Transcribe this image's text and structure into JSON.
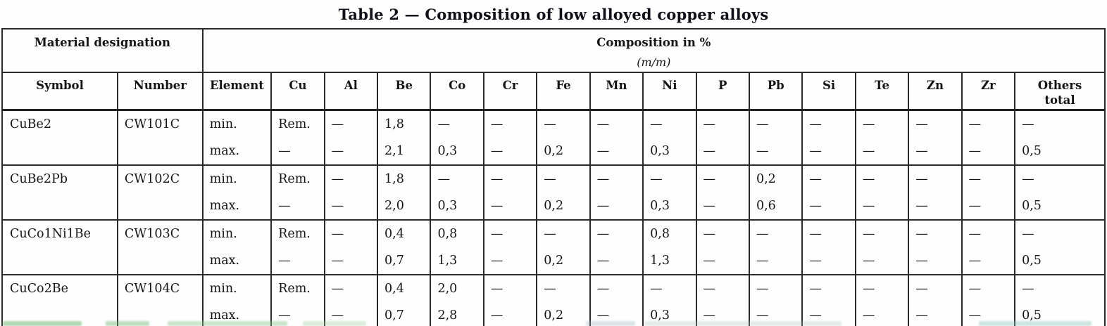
{
  "title": "Table 2 — Composition of low alloyed copper alloys",
  "table": {
    "group_headers": {
      "material_designation": "Material designation",
      "composition": "Composition in %",
      "composition_unit": "(m/m)"
    },
    "columns": [
      "Symbol",
      "Number",
      "Element",
      "Cu",
      "Al",
      "Be",
      "Co",
      "Cr",
      "Fe",
      "Mn",
      "Ni",
      "P",
      "Pb",
      "Si",
      "Te",
      "Zn",
      "Zr",
      "Others\ntotal"
    ],
    "row_labels": {
      "min": "min.",
      "max": "max."
    },
    "rows": [
      {
        "symbol": "CuBe2",
        "number": "CW101C",
        "min": [
          "Rem.",
          "—",
          "1,8",
          "—",
          "—",
          "—",
          "—",
          "—",
          "—",
          "—",
          "—",
          "—",
          "—",
          "—",
          "—"
        ],
        "max": [
          "—",
          "—",
          "2,1",
          "0,3",
          "—",
          "0,2",
          "—",
          "0,3",
          "—",
          "—",
          "—",
          "—",
          "—",
          "—",
          "0,5"
        ]
      },
      {
        "symbol": "CuBe2Pb",
        "number": "CW102C",
        "min": [
          "Rem.",
          "—",
          "1,8",
          "—",
          "—",
          "—",
          "—",
          "—",
          "—",
          "0,2",
          "—",
          "—",
          "—",
          "—",
          "—"
        ],
        "max": [
          "—",
          "—",
          "2,0",
          "0,3",
          "—",
          "0,2",
          "—",
          "0,3",
          "—",
          "0,6",
          "—",
          "—",
          "—",
          "—",
          "0,5"
        ]
      },
      {
        "symbol": "CuCo1Ni1Be",
        "number": "CW103C",
        "min": [
          "Rem.",
          "—",
          "0,4",
          "0,8",
          "—",
          "—",
          "—",
          "0,8",
          "—",
          "—",
          "—",
          "—",
          "—",
          "—",
          "—"
        ],
        "max": [
          "—",
          "—",
          "0,7",
          "1,3",
          "—",
          "0,2",
          "—",
          "1,3",
          "—",
          "—",
          "—",
          "—",
          "—",
          "—",
          "0,5"
        ]
      },
      {
        "symbol": "CuCo2Be",
        "number": "CW104C",
        "min": [
          "Rem.",
          "—",
          "0,4",
          "2,0",
          "—",
          "—",
          "—",
          "—",
          "—",
          "—",
          "—",
          "—",
          "—",
          "—",
          "—"
        ],
        "max": [
          "—",
          "—",
          "0,7",
          "2,8",
          "—",
          "0,2",
          "—",
          "0,3",
          "—",
          "—",
          "—",
          "—",
          "—",
          "—",
          "0,5"
        ]
      }
    ]
  }
}
